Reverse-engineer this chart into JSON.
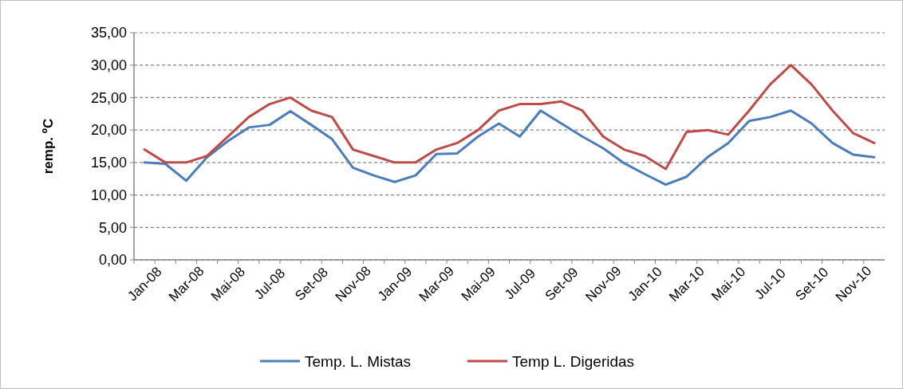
{
  "chart_data": {
    "type": "line",
    "ylabel": "remp. ºC",
    "categories": [
      "Jan-08",
      null,
      "Mar-08",
      null,
      "Mai-08",
      null,
      "Jul-08",
      null,
      "Set-08",
      null,
      "Nov-08",
      null,
      "Jan-09",
      null,
      "Mar-09",
      null,
      "Mai-09",
      null,
      "Jul-09",
      null,
      "Set-09",
      null,
      "Nov-09",
      null,
      "Jan-10",
      null,
      "Mar-10",
      null,
      "Mai-10",
      null,
      "Jul-10",
      null,
      "Set-10",
      null,
      "Nov-10",
      null
    ],
    "series": [
      {
        "name": "Temp. L. Mistas",
        "color": "#4a7ebb",
        "values": [
          15.0,
          14.8,
          12.2,
          15.8,
          18.3,
          20.4,
          20.8,
          22.9,
          20.8,
          18.6,
          14.2,
          13.0,
          12.0,
          13.0,
          16.3,
          16.4,
          19.0,
          21.0,
          19.0,
          23.0,
          21.0,
          19.0,
          17.2,
          14.9,
          13.2,
          11.6,
          12.8,
          15.8,
          18.0,
          21.4,
          22.0,
          23.0,
          21.0,
          18.0,
          16.2,
          15.8
        ]
      },
      {
        "name": "Temp L. Digeridas",
        "color": "#be4b48",
        "values": [
          17.0,
          15.0,
          15.0,
          16.0,
          19.0,
          22.0,
          24.0,
          25.0,
          23.0,
          22.0,
          17.0,
          16.0,
          15.0,
          15.0,
          17.0,
          18.0,
          20.0,
          23.0,
          24.0,
          24.0,
          24.4,
          23.0,
          19.0,
          17.0,
          16.0,
          14.0,
          19.7,
          20.0,
          19.3,
          23.0,
          27.0,
          30.0,
          27.0,
          23.0,
          19.5,
          18.0
        ]
      }
    ],
    "ylim": [
      0,
      35
    ],
    "yticks": [
      {
        "value": 0,
        "label": "0,00"
      },
      {
        "value": 5,
        "label": "5,00"
      },
      {
        "value": 10,
        "label": "10,00"
      },
      {
        "value": 15,
        "label": "15,00"
      },
      {
        "value": 20,
        "label": "20,00"
      },
      {
        "value": 25,
        "label": "25,00"
      },
      {
        "value": 30,
        "label": "30,00"
      },
      {
        "value": 35,
        "label": "35,00"
      }
    ],
    "grid": "y",
    "legend": "bottom",
    "marker": "none",
    "line_style": "solid"
  }
}
